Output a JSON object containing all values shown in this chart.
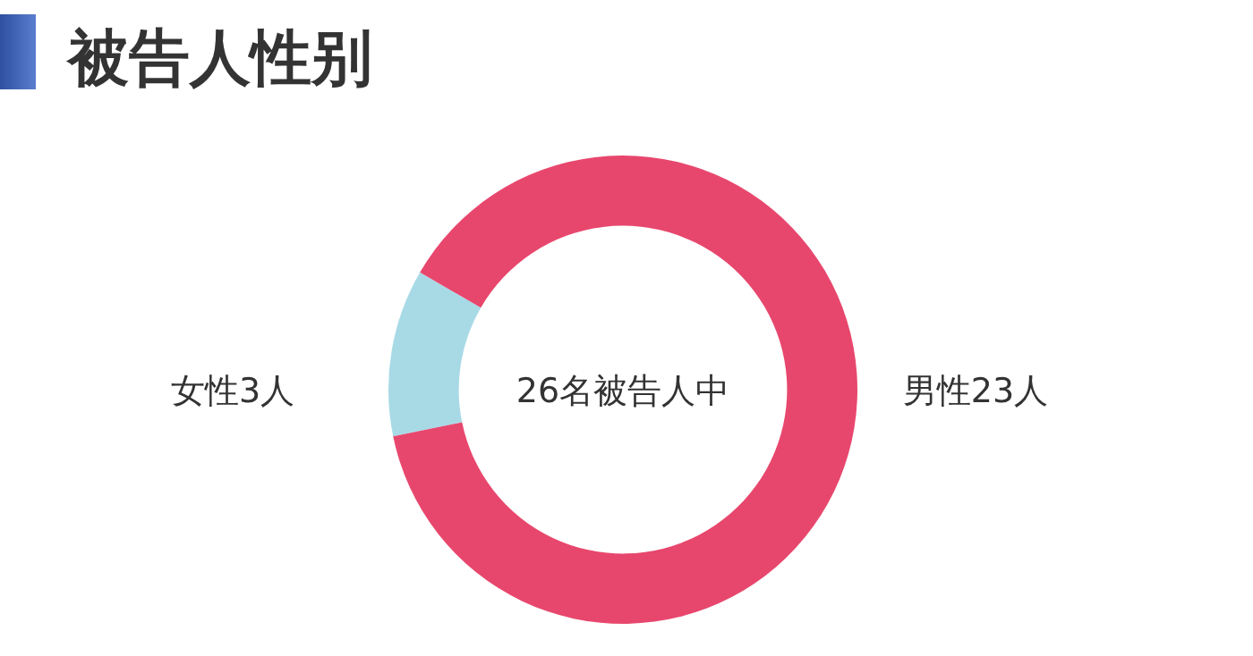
{
  "chart_data": {
    "type": "donut",
    "title": "被告人性别",
    "categories": [
      "女性3人",
      "男性23人"
    ],
    "values": [
      3,
      23
    ],
    "colors": [
      "#a8dae6",
      "#e8476d"
    ],
    "annotations": [
      "26名被告人中"
    ]
  }
}
